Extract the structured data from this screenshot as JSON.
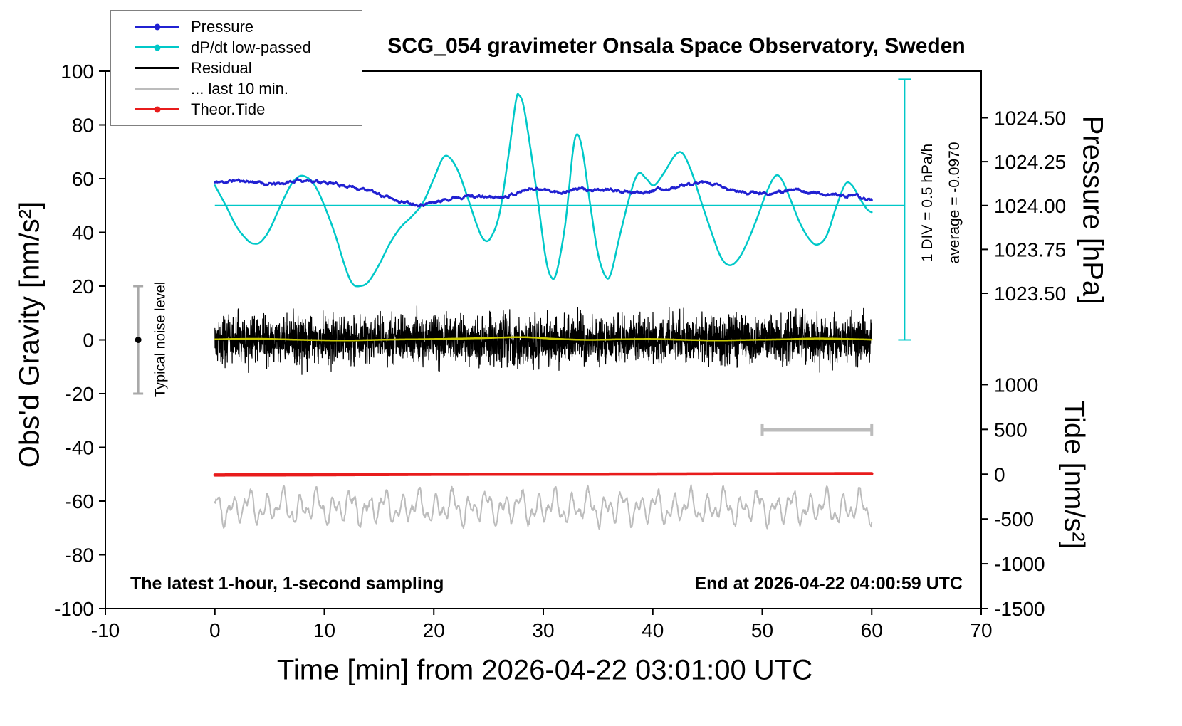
{
  "chart_data": {
    "type": "line",
    "title": "SCG_054 gravimeter Onsala Space Observatory, Sweden",
    "xlabel": "Time [min] from 2026-04-22 03:01:00 UTC",
    "ylabel_left": "Obs'd Gravity [nm/s²]",
    "ylabel_right_pressure": "Pressure [hPa]",
    "ylabel_right_tide": "Tide [nm/s²]",
    "xlim": [
      -10,
      70
    ],
    "ylim": [
      -100,
      100
    ],
    "xticks": [
      -10,
      0,
      10,
      20,
      30,
      40,
      50,
      60,
      70
    ],
    "yticks": [
      -100,
      -80,
      -60,
      -40,
      -20,
      0,
      20,
      40,
      60,
      80,
      100
    ],
    "pressure_ticks": [
      {
        "label": "1024.50",
        "g": 82.65
      },
      {
        "label": "1024.25",
        "g": 66.33
      },
      {
        "label": "1024.00",
        "g": 50.0
      },
      {
        "label": "1023.75",
        "g": 33.67
      },
      {
        "label": "1023.50",
        "g": 17.35
      }
    ],
    "tide_ticks": [
      {
        "label": "1000",
        "g": -16.67
      },
      {
        "label": "500",
        "g": -33.33
      },
      {
        "label": "0",
        "g": -50.0
      },
      {
        "label": "-500",
        "g": -66.67
      },
      {
        "label": "-1000",
        "g": -83.33
      },
      {
        "label": "-1500",
        "g": -100.0
      }
    ],
    "colors": {
      "cyan": "#00c8c8",
      "gray": "#bcbcbc",
      "noise_bar": "#a9a9a9",
      "frame": "#000000"
    },
    "legend": [
      {
        "label": "Pressure",
        "color": "#2121d2",
        "marker": "line-dot"
      },
      {
        "label": "dP/dt low-passed",
        "color": "#00c8c8",
        "marker": "line-dot"
      },
      {
        "label": "Residual",
        "color": "#000000",
        "marker": "line"
      },
      {
        "label": "... last 10 min.",
        "color": "#bcbcbc",
        "marker": "line"
      },
      {
        "label": "Theor.Tide",
        "color": "#e81c1c",
        "marker": "line-dot"
      }
    ],
    "annotations": {
      "noise_level": {
        "label": "Typical noise level",
        "x": -7,
        "y_lo": -20,
        "y_hi": 20,
        "dot_y": 0
      },
      "scale_note_1": "1 DIV = 0.5 hPa/h",
      "scale_note_2": "average = -0.0970",
      "pressure_scale_bar": {
        "x": 63,
        "y_lo": 0,
        "y_hi": 97
      },
      "reference_line": {
        "y": 50,
        "x_lo": 0,
        "x_hi": 63
      },
      "last10_bar": {
        "x_lo": 50,
        "x_hi": 60,
        "y": -33.5
      },
      "bottom_left": "The latest 1-hour, 1-second sampling",
      "bottom_right": "End at 2026-04-22 04:00:59 UTC"
    },
    "series": [
      {
        "id": "dpdt-low-passed",
        "name": "dP/dt low-passed",
        "color": "#00c8c8",
        "width": 2.5,
        "render": "smooth",
        "points": [
          [
            0,
            57.5
          ],
          [
            1,
            50
          ],
          [
            2,
            42
          ],
          [
            3,
            37
          ],
          [
            3.6,
            35.8
          ],
          [
            4.2,
            36.5
          ],
          [
            5,
            41
          ],
          [
            6,
            50
          ],
          [
            7,
            58
          ],
          [
            7.8,
            61
          ],
          [
            8.6,
            60
          ],
          [
            9.2,
            57
          ],
          [
            10,
            50
          ],
          [
            11,
            39
          ],
          [
            12,
            26
          ],
          [
            12.6,
            20.8
          ],
          [
            13.2,
            20
          ],
          [
            14,
            21.5
          ],
          [
            15,
            28
          ],
          [
            16,
            36
          ],
          [
            17,
            42
          ],
          [
            18,
            46
          ],
          [
            19,
            51
          ],
          [
            20,
            60
          ],
          [
            20.8,
            67.5
          ],
          [
            21.4,
            68
          ],
          [
            22.2,
            63
          ],
          [
            23,
            54
          ],
          [
            24,
            42
          ],
          [
            24.6,
            37.2
          ],
          [
            25.2,
            38
          ],
          [
            26,
            47
          ],
          [
            26.8,
            68
          ],
          [
            27.5,
            89
          ],
          [
            27.8,
            91
          ],
          [
            28.2,
            87
          ],
          [
            28.8,
            72
          ],
          [
            29.5,
            52
          ],
          [
            30.2,
            31
          ],
          [
            30.7,
            23.5
          ],
          [
            31.2,
            25
          ],
          [
            32,
            43
          ],
          [
            32.7,
            70
          ],
          [
            33.1,
            76.5
          ],
          [
            33.6,
            70
          ],
          [
            34.3,
            50
          ],
          [
            35,
            32
          ],
          [
            35.7,
            23.5
          ],
          [
            36.2,
            25
          ],
          [
            37,
            39
          ],
          [
            38,
            55
          ],
          [
            38.7,
            62
          ],
          [
            39.4,
            60
          ],
          [
            40.1,
            57.5
          ],
          [
            41,
            62
          ],
          [
            42,
            68.5
          ],
          [
            42.7,
            69.5
          ],
          [
            43.5,
            63
          ],
          [
            44.3,
            53
          ],
          [
            45.2,
            42
          ],
          [
            46.2,
            31
          ],
          [
            47,
            27.8
          ],
          [
            47.8,
            30
          ],
          [
            48.6,
            36
          ],
          [
            49.5,
            45
          ],
          [
            50.4,
            55
          ],
          [
            51.2,
            61
          ],
          [
            51.8,
            59.5
          ],
          [
            52.6,
            52
          ],
          [
            53.5,
            43
          ],
          [
            54.4,
            37
          ],
          [
            55.1,
            35.5
          ],
          [
            55.9,
            39
          ],
          [
            56.8,
            50
          ],
          [
            57.6,
            58
          ],
          [
            58.2,
            57.5
          ],
          [
            59,
            52
          ],
          [
            59.6,
            48.5
          ],
          [
            60,
            47.5
          ]
        ]
      },
      {
        "id": "pressure",
        "name": "Pressure",
        "color": "#2121d2",
        "width": 3,
        "render": "smooth-jitter",
        "jitter": 0.35,
        "seed": 11,
        "points": [
          [
            0,
            58.6
          ],
          [
            1,
            58.8
          ],
          [
            2,
            59.3
          ],
          [
            3,
            59.0
          ],
          [
            4,
            58.6
          ],
          [
            5,
            57.9
          ],
          [
            6,
            58.1
          ],
          [
            7,
            58.9
          ],
          [
            8,
            59.4
          ],
          [
            9,
            59.2
          ],
          [
            10,
            58.6
          ],
          [
            11,
            57.9
          ],
          [
            12,
            57.4
          ],
          [
            13,
            56.6
          ],
          [
            14,
            55.6
          ],
          [
            15,
            54.2
          ],
          [
            16,
            52.8
          ],
          [
            17,
            51.7
          ],
          [
            18,
            50.9
          ],
          [
            19,
            50.7
          ],
          [
            20,
            51.2
          ],
          [
            21,
            52.2
          ],
          [
            22,
            53.2
          ],
          [
            23,
            53.6
          ],
          [
            24,
            53.4
          ],
          [
            25,
            53.1
          ],
          [
            26,
            53.3
          ],
          [
            27,
            54.1
          ],
          [
            28,
            55.3
          ],
          [
            29,
            56.4
          ],
          [
            30,
            56.1
          ],
          [
            31,
            55.0
          ],
          [
            32,
            55.2
          ],
          [
            33,
            56.2
          ],
          [
            34,
            55.8
          ],
          [
            35,
            55.4
          ],
          [
            36,
            55.9
          ],
          [
            37,
            55.3
          ],
          [
            38,
            54.7
          ],
          [
            39,
            55.1
          ],
          [
            40,
            55.9
          ],
          [
            41,
            56.1
          ],
          [
            42,
            56.6
          ],
          [
            43,
            57.4
          ],
          [
            44,
            58.2
          ],
          [
            45,
            58.1
          ],
          [
            46,
            57.2
          ],
          [
            47,
            55.9
          ],
          [
            48,
            55.1
          ],
          [
            49,
            54.7
          ],
          [
            50,
            54.6
          ],
          [
            51,
            54.9
          ],
          [
            52,
            55.1
          ],
          [
            53,
            55.6
          ],
          [
            54,
            55.3
          ],
          [
            55,
            54.6
          ],
          [
            56,
            54.1
          ],
          [
            57,
            53.9
          ],
          [
            58,
            53.6
          ],
          [
            59,
            52.9
          ],
          [
            60,
            52.1
          ]
        ]
      },
      {
        "id": "residual",
        "name": "Residual",
        "color": "#000000",
        "width": 1.2,
        "render": "noise",
        "x_lo": 0,
        "x_hi": 60,
        "center": 0,
        "sigma": 4.3,
        "seed": 42
      },
      {
        "id": "residual-mean",
        "name": "Residual smoothed",
        "color": "#c8c800",
        "width": 2.5,
        "render": "smooth",
        "points": [
          [
            0,
            0.2
          ],
          [
            4,
            0.4
          ],
          [
            8,
            0.0
          ],
          [
            12,
            -0.2
          ],
          [
            16,
            0.1
          ],
          [
            20,
            0.3
          ],
          [
            24,
            0.6
          ],
          [
            28,
            1.0
          ],
          [
            31,
            0.4
          ],
          [
            34,
            0.0
          ],
          [
            37,
            0.2
          ],
          [
            40,
            0.3
          ],
          [
            43,
            0.0
          ],
          [
            46,
            -0.2
          ],
          [
            49,
            0.0
          ],
          [
            52,
            0.2
          ],
          [
            55,
            0.5
          ],
          [
            58,
            0.3
          ],
          [
            60,
            0.1
          ]
        ]
      },
      {
        "id": "theor-tide",
        "name": "Theor.Tide",
        "color": "#e81c1c",
        "width": 4.5,
        "render": "smooth",
        "points": [
          [
            0,
            -50.3
          ],
          [
            10,
            -50.2
          ],
          [
            20,
            -50.05
          ],
          [
            30,
            -50.0
          ],
          [
            40,
            -49.95
          ],
          [
            50,
            -49.85
          ],
          [
            60,
            -49.8
          ]
        ]
      },
      {
        "id": "last-10-min",
        "name": "... last 10 min.",
        "color": "#bcbcbc",
        "width": 2,
        "render": "osc",
        "x_lo": 0,
        "x_hi": 60,
        "step": 0.05,
        "center": -62.5,
        "noise": 0.9,
        "seed": 7,
        "components": [
          {
            "amp": 3.8,
            "period": 1.55,
            "phase": 1.3
          },
          {
            "amp": 2.7,
            "period": 0.73,
            "phase": 4.0
          },
          {
            "amp": 1.6,
            "period": 3.1,
            "phase": 2.0
          }
        ]
      }
    ]
  }
}
